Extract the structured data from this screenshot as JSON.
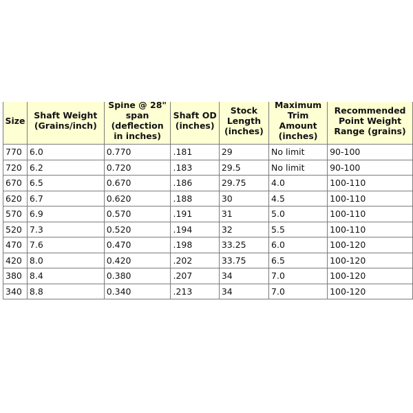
{
  "table": {
    "headers": [
      "Size",
      "Shaft Weight (Grains/inch)",
      "Spine @ 28\" span (deflection in inches)",
      "Shaft OD (inches)",
      "Stock Length (inches)",
      "Maximum Trim Amount (inches)",
      "Recommended Point Weight Range (grains)"
    ],
    "rows": [
      [
        "770",
        "6.0",
        "0.770",
        ".181",
        "29",
        "No limit",
        "90-100"
      ],
      [
        "720",
        "6.2",
        "0.720",
        ".183",
        "29.5",
        "No limit",
        "90-100"
      ],
      [
        "670",
        "6.5",
        "0.670",
        ".186",
        "29.75",
        "4.0",
        "100-110"
      ],
      [
        "620",
        "6.7",
        "0.620",
        ".188",
        "30",
        "4.5",
        "100-110"
      ],
      [
        "570",
        "6.9",
        "0.570",
        ".191",
        "31",
        "5.0",
        "100-110"
      ],
      [
        "520",
        "7.3",
        "0.520",
        ".194",
        "32",
        "5.5",
        "100-110"
      ],
      [
        "470",
        "7.6",
        "0.470",
        ".198",
        "33.25",
        "6.0",
        "100-120"
      ],
      [
        "420",
        "8.0",
        "0.420",
        ".202",
        "33.75",
        "6.5",
        "100-120"
      ],
      [
        "380",
        "8.4",
        "0.380",
        ".207",
        "34",
        "7.0",
        "100-120"
      ],
      [
        "340",
        "8.8",
        "0.340",
        ".213",
        "34",
        "7.0",
        "100-120"
      ]
    ]
  }
}
